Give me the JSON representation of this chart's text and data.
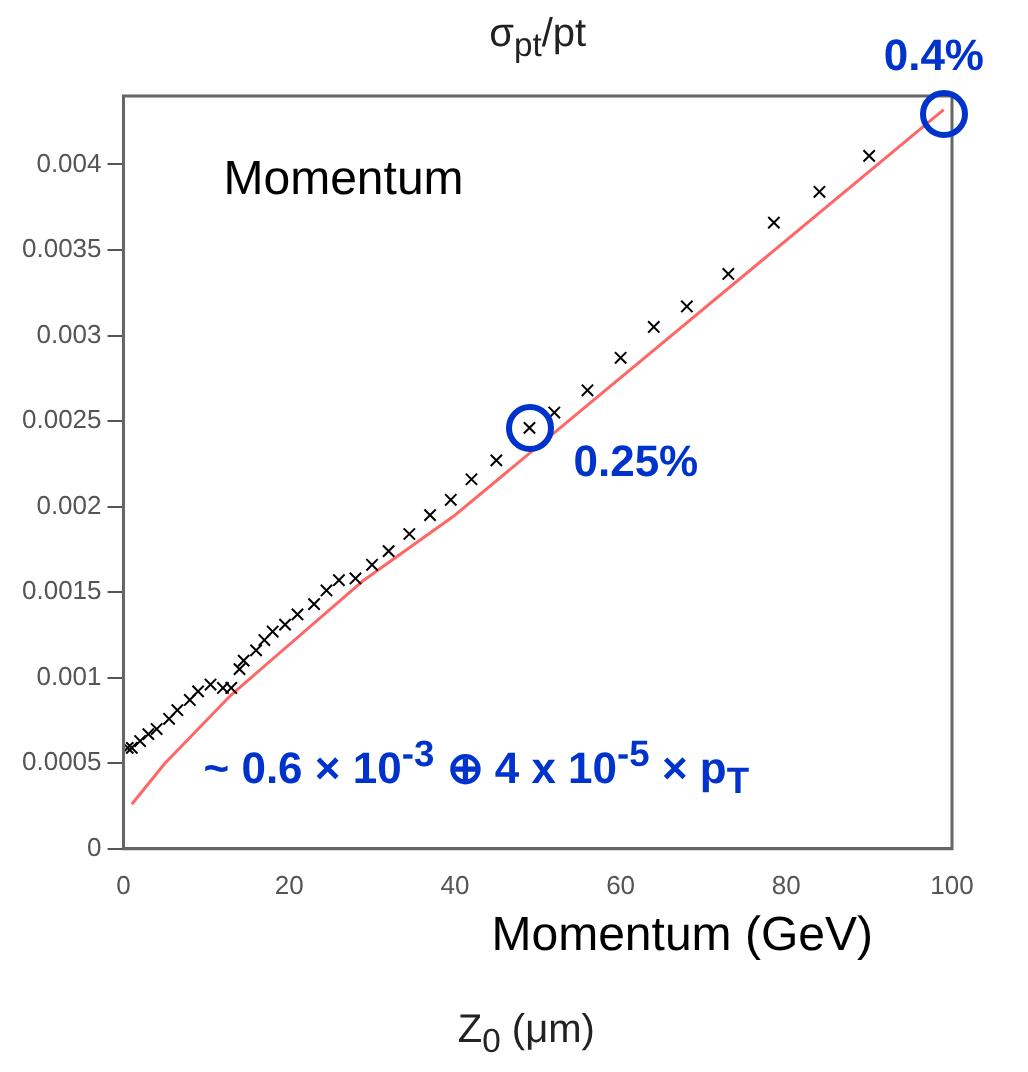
{
  "chart_data": {
    "type": "scatter",
    "title": "σ$_{pt}$/pt",
    "xlabel": "Z$_{0}$ (μm)",
    "xlim": [
      0,
      100
    ],
    "xticks": [
      0,
      20,
      40,
      60,
      80,
      100
    ],
    "ylim": [
      0,
      0.0044
    ],
    "yticks": [
      0,
      0.0005,
      0.001,
      0.0015,
      0.002,
      0.0025,
      0.003,
      0.0035,
      0.004
    ],
    "grid": false,
    "legend": false,
    "marker": "cross",
    "series": [
      {
        "type": "scatter",
        "color": "#000000",
        "x": [
          0.5,
          1,
          2,
          3,
          4,
          5.5,
          6.5,
          8,
          9,
          10.5,
          12,
          13,
          14,
          14.5,
          16,
          17,
          18,
          19.5,
          21,
          23,
          24.5,
          26,
          28,
          30,
          32,
          34.5,
          37,
          39.5,
          42,
          45,
          49,
          52,
          56,
          60,
          64,
          68,
          73,
          78.5,
          84,
          90
        ],
        "values": [
          0.00059,
          0.00059,
          0.00063,
          0.00067,
          0.0007,
          0.00076,
          0.00081,
          0.00087,
          0.00092,
          0.00096,
          0.00094,
          0.00094,
          0.00105,
          0.0011,
          0.00116,
          0.00122,
          0.00127,
          0.00131,
          0.00137,
          0.00143,
          0.00151,
          0.00157,
          0.00158,
          0.00166,
          0.00174,
          0.00184,
          0.00195,
          0.00204,
          0.00216,
          0.00227,
          0.00246,
          0.00255,
          0.00268,
          0.00287,
          0.00305,
          0.00317,
          0.00336,
          0.00366,
          0.00384,
          0.00405
        ]
      },
      {
        "type": "line",
        "color": "#ff6666",
        "marker": "none",
        "x": [
          1,
          5,
          10,
          13,
          29,
          40,
          99
        ],
        "values": [
          0.00026,
          0.0005,
          0.00075,
          0.0009,
          0.00157,
          0.00195,
          0.00432
        ]
      }
    ],
    "annotations": [
      "Momentum",
      {
        "text": "0.25%",
        "x": 49,
        "y": 0.00246
      },
      {
        "text": "0.4%",
        "x": 99,
        "y": 0.0043
      },
      "~ 0.6 × 10$^{-3}$ ⊕ 4 x 10$^{-5}$ × p$_{T}$",
      "Momentum (GeV)"
    ]
  }
}
